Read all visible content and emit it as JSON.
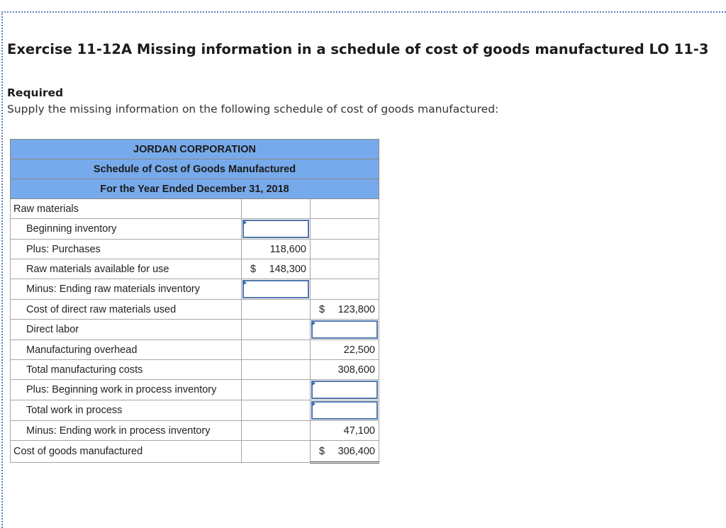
{
  "header": {
    "title": "Exercise 11-12A Missing information in a schedule of cost of goods manufactured LO 11-3",
    "required_label": "Required",
    "instructions": "Supply the missing information on the following schedule of cost of goods manufactured:"
  },
  "schedule": {
    "company": "JORDAN CORPORATION",
    "statement": "Schedule of Cost of Goods Manufactured",
    "period": "For the Year Ended December 31, 2018",
    "rows": {
      "raw_materials": {
        "label": "Raw materials"
      },
      "beginning_inventory": {
        "label": "Beginning inventory",
        "value": ""
      },
      "purchases": {
        "label": "Plus: Purchases",
        "value": "118,600"
      },
      "available": {
        "label": "Raw materials available for use",
        "currency": "$",
        "value": "148,300"
      },
      "ending_raw": {
        "label": "Minus: Ending raw materials inventory",
        "value": ""
      },
      "direct_raw_used": {
        "label": "Cost of direct raw materials used",
        "currency": "$",
        "value": "123,800"
      },
      "direct_labor": {
        "label": "Direct labor",
        "value": ""
      },
      "overhead": {
        "label": "Manufacturing overhead",
        "value": "22,500"
      },
      "total_mfg": {
        "label": "Total manufacturing costs",
        "value": "308,600"
      },
      "beginning_wip": {
        "label": "Plus: Beginning work in process inventory",
        "value": ""
      },
      "total_wip": {
        "label": "Total work in process",
        "value": ""
      },
      "ending_wip": {
        "label": "Minus: Ending work in process inventory",
        "value": "47,100"
      },
      "cogm": {
        "label": "Cost of goods manufactured",
        "currency": "$",
        "value": "306,400"
      }
    }
  }
}
